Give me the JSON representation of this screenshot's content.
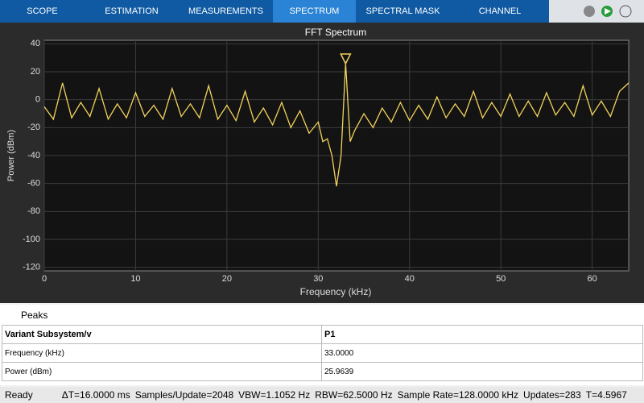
{
  "toolbar": {
    "tabs": [
      "SCOPE",
      "ESTIMATION",
      "MEASUREMENTS",
      "SPECTRUM",
      "SPECTRAL MASK",
      "CHANNEL MEASUREMENTS"
    ]
  },
  "chart_data": {
    "type": "line",
    "title": "FFT Spectrum",
    "x_label": "Frequency (kHz)",
    "y_label": "Power (dBm)",
    "x": [
      0,
      1,
      2,
      3,
      4,
      5,
      6,
      7,
      8,
      9,
      10,
      11,
      12,
      13,
      14,
      15,
      16,
      17,
      18,
      19,
      20,
      21,
      22,
      23,
      24,
      25,
      26,
      27,
      28,
      29,
      30,
      30.5,
      31,
      31.5,
      32,
      32.5,
      33,
      33.5,
      34,
      35,
      36,
      37,
      38,
      39,
      40,
      41,
      42,
      43,
      44,
      45,
      46,
      47,
      48,
      49,
      50,
      51,
      52,
      53,
      54,
      55,
      56,
      57,
      58,
      59,
      60,
      61,
      62,
      63,
      64
    ],
    "series": [
      {
        "name": "Variant Subsystem/v",
        "color": "#f2d35b",
        "values": [
          -5,
          -14,
          12,
          -13,
          -2,
          -12,
          8,
          -14,
          -3,
          -13,
          5,
          -12,
          -4,
          -14,
          8,
          -12,
          -3,
          -13,
          10,
          -14,
          -4,
          -15,
          6,
          -16,
          -6,
          -18,
          -2,
          -20,
          -8,
          -24,
          -16,
          -30,
          -28,
          -40,
          -62,
          -40,
          25.96,
          -30,
          -22,
          -10,
          -20,
          -6,
          -16,
          -2,
          -15,
          -4,
          -14,
          2,
          -13,
          -3,
          -12,
          6,
          -13,
          -2,
          -12,
          4,
          -12,
          -1,
          -12,
          5,
          -11,
          -2,
          -12,
          10,
          -11,
          -1,
          -12,
          6,
          12
        ]
      }
    ],
    "xlim": [
      0,
      64
    ],
    "xticks": [
      0,
      10,
      20,
      30,
      40,
      50,
      60
    ],
    "ylim": [
      -122.5,
      42.5
    ],
    "yticks": [
      40,
      20,
      0,
      -20,
      -40,
      -60,
      -80,
      -100,
      -120
    ],
    "grid": true
  },
  "peaks": {
    "title": "Peaks",
    "header": [
      "Variant Subsystem/v",
      "P1"
    ],
    "rows": [
      [
        "Frequency (kHz)",
        "33.0000"
      ],
      [
        "Power (dBm)",
        "25.9639"
      ]
    ]
  },
  "status": [
    "Ready",
    "ΔT=16.0000 ms",
    "Samples/Update=2048",
    "VBW=1.1052 Hz",
    "RBW=62.5000 Hz",
    "Sample Rate=128.0000 kHz",
    "Updates=283",
    "T=4.5967"
  ]
}
